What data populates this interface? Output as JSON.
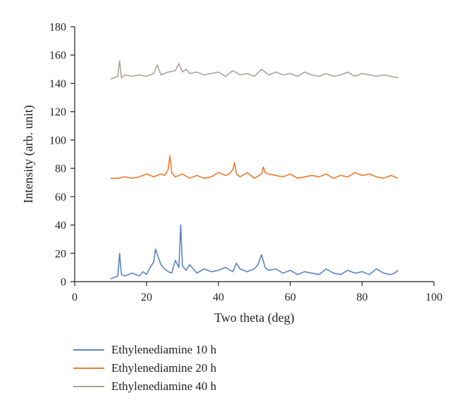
{
  "chart_data": {
    "type": "line",
    "xlabel": "Two theta (deg)",
    "ylabel": "Intensity (arb. unit)",
    "xlim": [
      0,
      100
    ],
    "ylim": [
      0,
      180
    ],
    "xticks": [
      0,
      20,
      40,
      60,
      80,
      100
    ],
    "yticks": [
      0,
      20,
      40,
      60,
      80,
      100,
      120,
      140,
      160,
      180
    ],
    "grid": false,
    "legend_position": "bottom",
    "series": [
      {
        "name": "Ethylenediamine 10 h",
        "color": "#5b83c7",
        "x": [
          10,
          11,
          12,
          12.5,
          13,
          14,
          16,
          18,
          19,
          20,
          21,
          22,
          22.5,
          23,
          24,
          25,
          26,
          27,
          28,
          29,
          29.5,
          30,
          31,
          32,
          34,
          36,
          38,
          40,
          42,
          44,
          45,
          46,
          48,
          50,
          51,
          52,
          53,
          54,
          56,
          58,
          60,
          62,
          64,
          66,
          68,
          70,
          72,
          74,
          76,
          78,
          80,
          82,
          84,
          86,
          88,
          89,
          90
        ],
        "values": [
          2,
          3,
          4,
          20,
          5,
          4,
          6,
          4,
          7,
          5,
          10,
          14,
          23,
          19,
          12,
          9,
          7,
          6,
          15,
          10,
          40,
          11,
          8,
          12,
          6,
          9,
          7,
          8,
          10,
          7,
          13,
          9,
          7,
          9,
          12,
          19,
          10,
          8,
          9,
          6,
          8,
          5,
          7,
          6,
          5,
          9,
          6,
          5,
          8,
          6,
          7,
          5,
          9,
          6,
          5,
          6,
          8
        ]
      },
      {
        "name": "Ethylenediamine 20 h",
        "color": "#f07a2a",
        "x": [
          10,
          12,
          14,
          16,
          18,
          20,
          22,
          24,
          25,
          26,
          26.5,
          27,
          28,
          30,
          32,
          34,
          36,
          38,
          40,
          42,
          43,
          44,
          44.5,
          45,
          46,
          48,
          50,
          52,
          52.5,
          53,
          54,
          56,
          58,
          60,
          62,
          64,
          66,
          68,
          70,
          72,
          74,
          76,
          78,
          80,
          82,
          84,
          86,
          88,
          89,
          90
        ],
        "values": [
          73,
          73,
          74,
          73,
          74,
          76,
          74,
          76,
          75,
          79,
          89,
          77,
          74,
          76,
          73,
          75,
          73,
          74,
          77,
          75,
          76,
          79,
          84,
          76,
          74,
          77,
          73,
          76,
          81,
          77,
          76,
          75,
          74,
          76,
          73,
          74,
          75,
          74,
          76,
          73,
          75,
          74,
          77,
          75,
          76,
          74,
          73,
          75,
          74,
          73
        ]
      },
      {
        "name": "Ethylenediamine 40 h",
        "color": "#b0a19a",
        "x": [
          10,
          11,
          12,
          12.5,
          13,
          14,
          16,
          18,
          20,
          22,
          23,
          24,
          26,
          28,
          29,
          30,
          31,
          32,
          34,
          36,
          38,
          40,
          42,
          44,
          46,
          48,
          50,
          52,
          54,
          56,
          58,
          60,
          62,
          64,
          66,
          68,
          70,
          72,
          74,
          76,
          78,
          80,
          82,
          84,
          86,
          88,
          90
        ],
        "values": [
          143,
          144,
          145,
          156,
          144,
          146,
          145,
          146,
          145,
          147,
          153,
          146,
          148,
          149,
          154,
          148,
          150,
          147,
          148,
          146,
          147,
          148,
          145,
          149,
          146,
          147,
          145,
          150,
          146,
          148,
          146,
          147,
          145,
          148,
          146,
          145,
          147,
          145,
          146,
          148,
          145,
          147,
          146,
          145,
          146,
          145,
          144
        ]
      }
    ]
  }
}
